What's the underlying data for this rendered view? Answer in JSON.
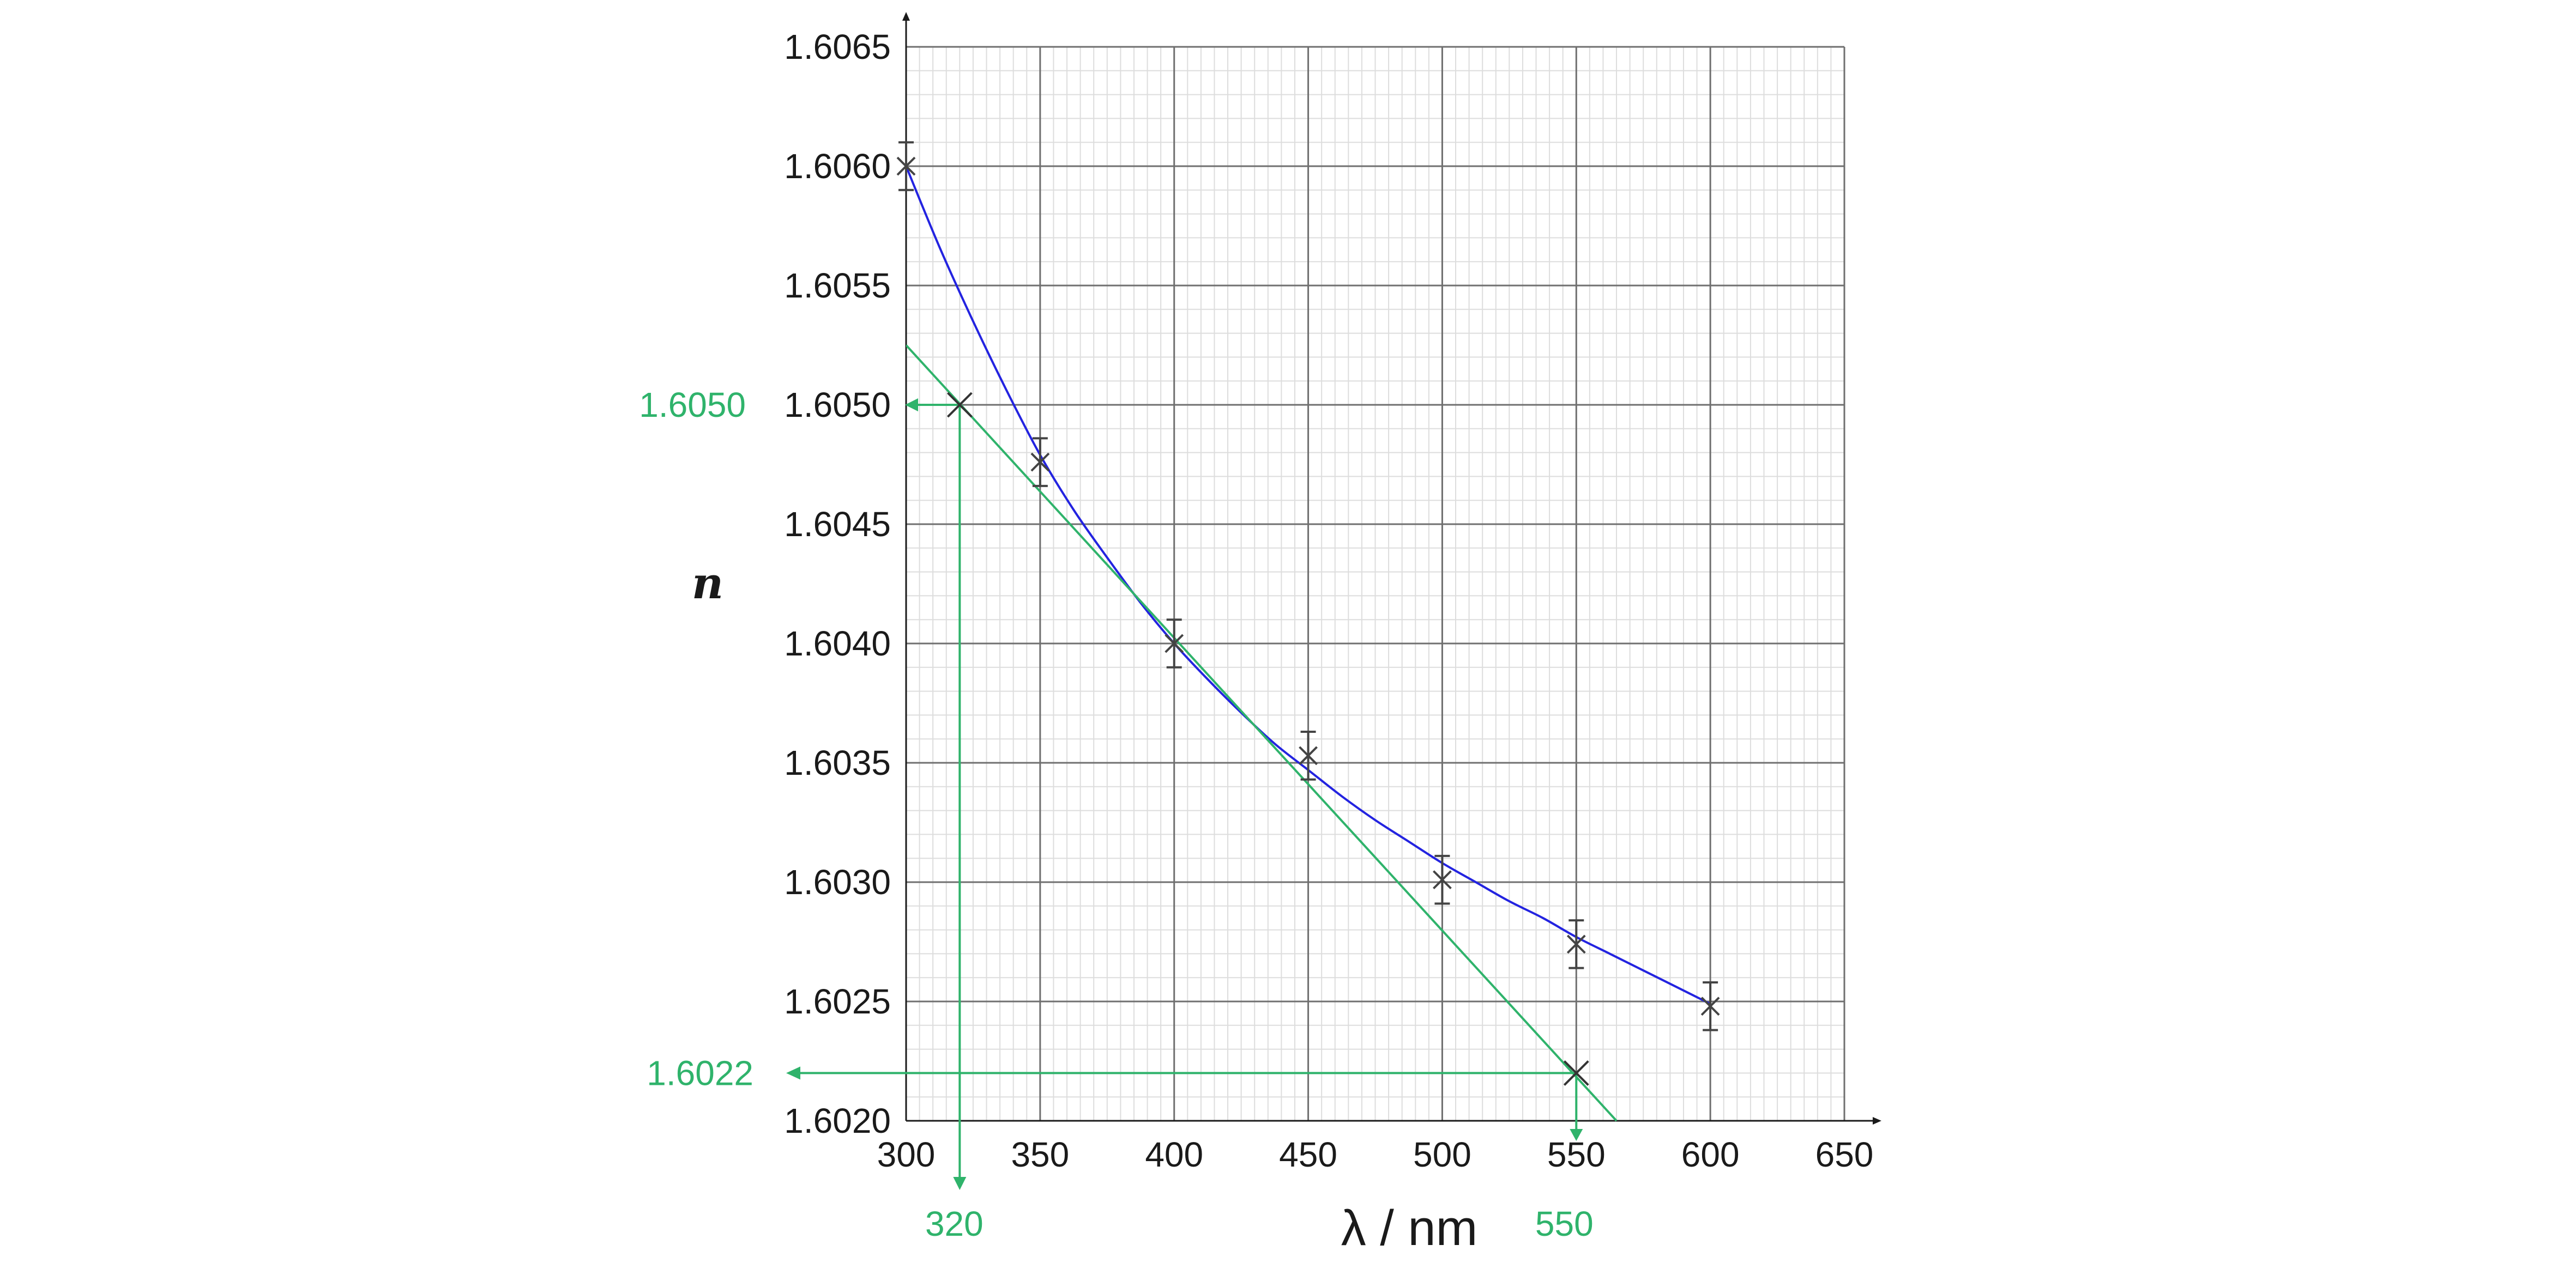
{
  "chart_data": {
    "type": "scatter",
    "xlabel": "λ / nm",
    "ylabel": "n",
    "xlim": [
      300,
      650
    ],
    "ylim": [
      1.602,
      1.6065
    ],
    "x_ticks": [
      "300",
      "350",
      "400",
      "450",
      "500",
      "550",
      "600",
      "650"
    ],
    "y_ticks": [
      "1.6020",
      "1.6025",
      "1.6030",
      "1.6035",
      "1.6040",
      "1.6045",
      "1.6050",
      "1.6055",
      "1.6060",
      "1.6065"
    ],
    "grid": true,
    "series": [
      {
        "kind": "points_with_error_bars",
        "x": [
          300,
          350,
          400,
          450,
          500,
          550,
          600
        ],
        "y": [
          1.606,
          1.60476,
          1.604,
          1.60353,
          1.60301,
          1.60274,
          1.60248
        ],
        "y_error": 0.0001,
        "color": "#444444"
      },
      {
        "kind": "curve",
        "color": "#2323e0",
        "x": [
          300,
          312.5,
          325,
          337.5,
          350,
          362.5,
          375,
          387.5,
          400,
          412.5,
          425,
          437.5,
          450,
          462.5,
          475,
          487.5,
          500,
          512.5,
          525,
          537.5,
          550,
          562.5,
          575,
          587.5,
          600
        ],
        "y": [
          1.606,
          1.60566,
          1.60535,
          1.60506,
          1.60479,
          1.60456,
          1.60436,
          1.60417,
          1.604,
          1.60385,
          1.60371,
          1.60358,
          1.60347,
          1.60336,
          1.60326,
          1.60317,
          1.60308,
          1.603,
          1.60292,
          1.60285,
          1.60277,
          1.6027,
          1.60263,
          1.60256,
          1.60249
        ]
      },
      {
        "kind": "tangent_line",
        "color": "#2fb36b",
        "x": [
          300,
          565
        ],
        "y": [
          1.60525,
          1.602
        ]
      }
    ],
    "annotations": [
      {
        "label": "1.6050",
        "axis": "y",
        "value": 1.605,
        "point": [
          320,
          1.605
        ]
      },
      {
        "label": "320",
        "axis": "x",
        "value": 320,
        "point": [
          320,
          1.605
        ]
      },
      {
        "label": "1.6022",
        "axis": "y",
        "value": 1.6022,
        "point": [
          550,
          1.6022
        ]
      },
      {
        "label": "550",
        "axis": "x",
        "value": 550,
        "point": [
          550,
          1.6022
        ]
      }
    ],
    "colors": {
      "curve": "#2323e0",
      "tangent": "#2fb36b",
      "grid_major": "#6f6f6f",
      "grid_minor": "#dddddd",
      "points": "#444444"
    }
  }
}
